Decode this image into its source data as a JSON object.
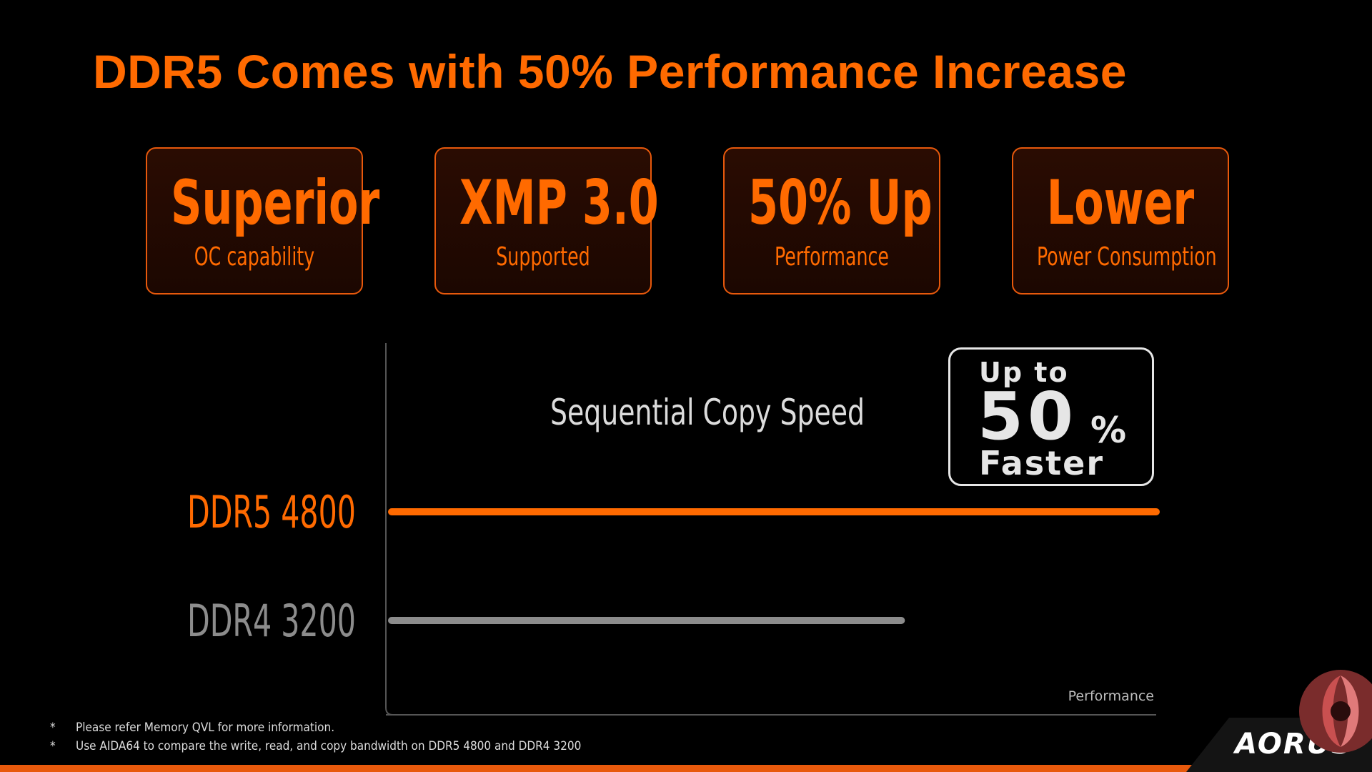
{
  "title": "DDR5 Comes with 50% Performance Increase",
  "features": [
    {
      "big": "Superior",
      "small": "OC capability"
    },
    {
      "big": "XMP 3.0",
      "small": "Supported"
    },
    {
      "big": "50% Up",
      "small": "Performance"
    },
    {
      "big": "Lower",
      "small": "Power Consumption"
    }
  ],
  "chart_data": {
    "type": "bar",
    "orientation": "horizontal",
    "title": "Sequential Copy Speed",
    "xlabel": "Performance",
    "categories": [
      "DDR5 4800",
      "DDR4 3200"
    ],
    "values": [
      150,
      100
    ],
    "xlim": [
      0,
      150
    ],
    "colors": [
      "#ff6a00",
      "#8c8c8c"
    ],
    "grid": false
  },
  "badge": {
    "line1": "Up to",
    "line2": "50",
    "line2_suffix": "%",
    "line3": "Faster"
  },
  "footnotes": [
    {
      "marker": "*",
      "text": "Please refer Memory QVL for more information."
    },
    {
      "marker": "*",
      "text": "Use AIDA64 to compare the write, read, and copy bandwidth on DDR5 4800 and DDR4 3200"
    }
  ],
  "brand": "AORUS",
  "colors": {
    "accent": "#ff6a00",
    "border": "#e8590c"
  }
}
